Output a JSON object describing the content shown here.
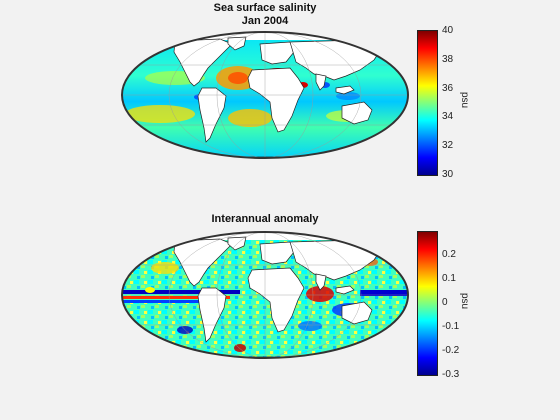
{
  "panels": [
    {
      "title_line1": "Sea surface salinity",
      "title_line2": "Jan 2004",
      "colorbar": {
        "min": 30,
        "max": 40,
        "ticks": [
          "40",
          "38",
          "36",
          "34",
          "32",
          "30"
        ],
        "unit": "psu"
      }
    },
    {
      "title_line1": "Interannual anomaly",
      "colorbar": {
        "min": -0.3,
        "max": 0.3,
        "ticks": [
          "0.2",
          "0.1",
          "0",
          "-0.1",
          "-0.2",
          "-0.3"
        ],
        "unit": "psu"
      }
    }
  ],
  "colormap": "jet",
  "colors": {
    "background": "#f2f2f2",
    "land": "#ffffff",
    "coast": "#222222"
  }
}
